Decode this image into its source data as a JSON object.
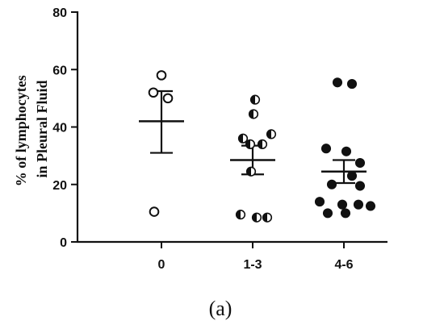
{
  "chart_data": {
    "type": "scatter",
    "categories": [
      "0",
      "1-3",
      "4-6"
    ],
    "ylabel_lines": [
      "% of lymphocytes",
      "in Pleural Fluid"
    ],
    "ylim": [
      0,
      80
    ],
    "yticks": [
      0,
      20,
      40,
      60,
      80
    ],
    "caption": "(a)",
    "grid": false,
    "groups": [
      {
        "category": "0",
        "marker": "open-circle",
        "mean": 42,
        "sem_upper": 52.5,
        "sem_lower": 31,
        "points": [
          58,
          52,
          50,
          10.5
        ]
      },
      {
        "category": "1-3",
        "marker": "half-filled-circle",
        "mean": 28.5,
        "sem_upper": 33.5,
        "sem_lower": 23.5,
        "points": [
          49.5,
          44.5,
          37.5,
          36,
          34,
          34,
          24.5,
          9.5,
          8.5,
          8.5
        ]
      },
      {
        "category": "4-6",
        "marker": "filled-circle",
        "mean": 24.5,
        "sem_upper": 28.5,
        "sem_lower": 20.5,
        "points": [
          55.5,
          55,
          32.5,
          31.5,
          27.5,
          23,
          20,
          19.5,
          14,
          13,
          13,
          12.5,
          10,
          10
        ]
      }
    ]
  }
}
